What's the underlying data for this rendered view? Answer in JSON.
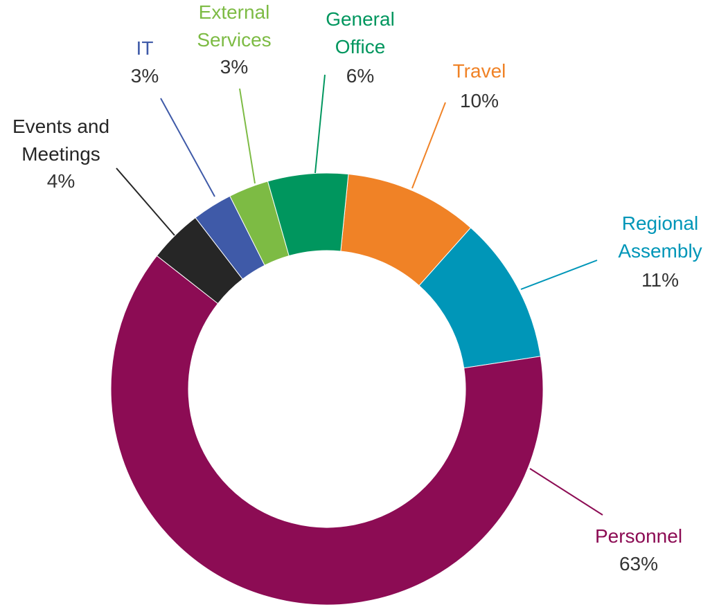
{
  "chart_data": {
    "type": "donut",
    "categories": [
      "Travel",
      "Regional Assembly",
      "Personnel",
      "Events and Meetings",
      "IT",
      "External Services",
      "General Office"
    ],
    "values": [
      10,
      11,
      63,
      4,
      3,
      3,
      6
    ],
    "value_labels": [
      "10%",
      "11%",
      "63%",
      "4%",
      "3%",
      "3%",
      "6%"
    ],
    "colors": [
      "#f08226",
      "#0096b8",
      "#8c0c54",
      "#262626",
      "#3f5aa8",
      "#7dbb44",
      "#00965e"
    ]
  }
}
